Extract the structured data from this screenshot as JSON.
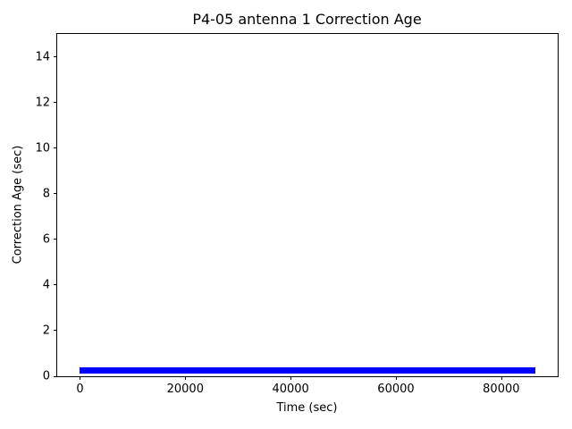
{
  "figure": {
    "background_color": "#ffffff",
    "axes_edge_color": "#000000",
    "text_color": "#000000"
  },
  "chart_data": {
    "type": "line",
    "title": "P4-05 antenna 1 Correction Age",
    "xlabel": "Time (sec)",
    "ylabel": "Correction Age (sec)",
    "xlim": [
      -4320,
      90720
    ],
    "ylim": [
      0,
      15
    ],
    "x_ticks": [
      0,
      20000,
      40000,
      60000,
      80000
    ],
    "y_ticks": [
      0,
      2,
      4,
      6,
      8,
      10,
      12,
      14
    ],
    "grid": false,
    "legend": false,
    "line_color": "#0000ff",
    "series": [
      {
        "name": "Correction Age",
        "description": "Dense high-frequency time series from t=0 to t=86400 sec; values oscillate between ~0.1 and ~0.4 sec, rendering as a solid thick blue band just above y=0 across the full day",
        "x_start": 0,
        "x_end": 86400,
        "y_min": 0.1,
        "y_max": 0.4
      }
    ]
  }
}
